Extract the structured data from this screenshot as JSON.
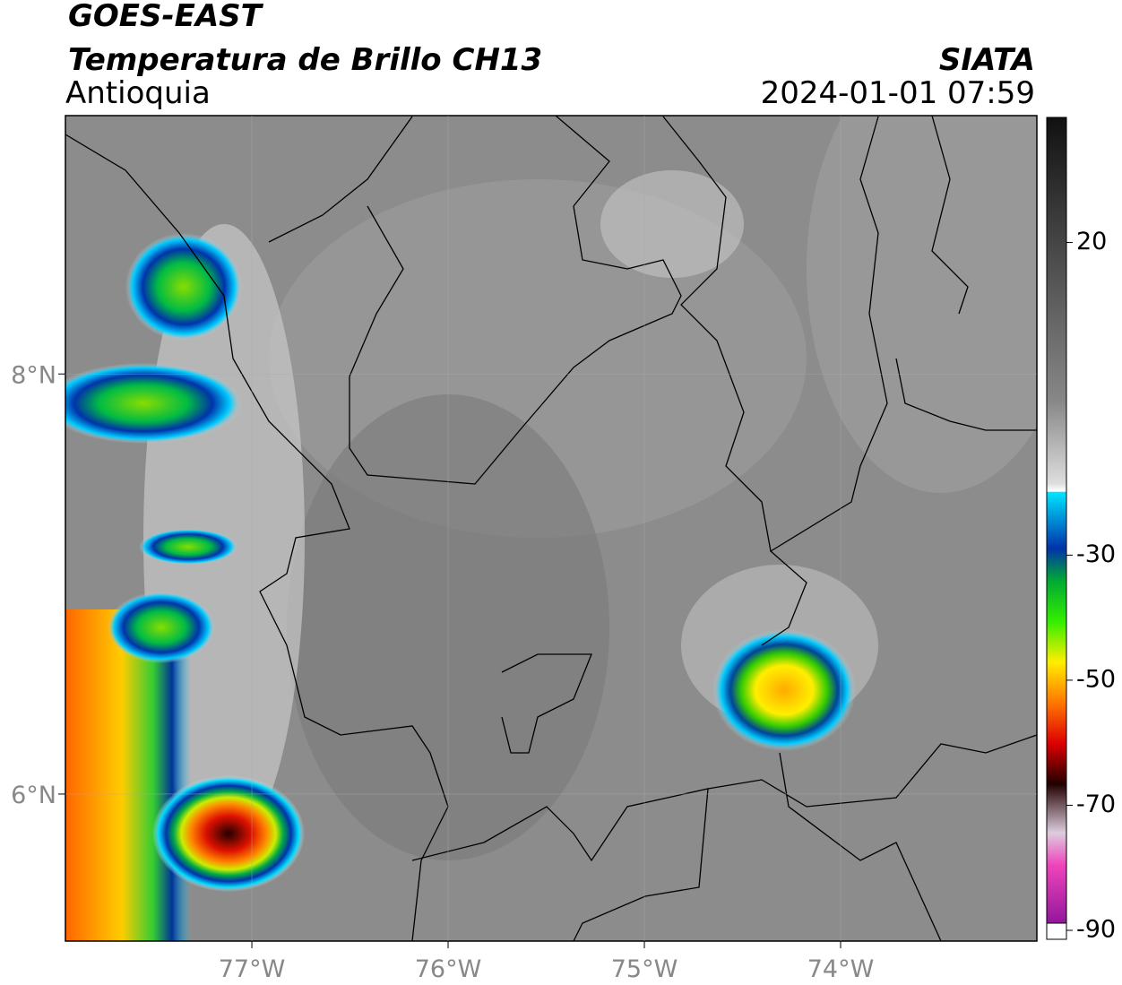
{
  "header": {
    "satellite": "GOES-EAST",
    "product": "Temperatura de Brillo CH13",
    "region": "Antioquia",
    "agency": "SIATA",
    "datetime": "2024-01-01 07:59"
  },
  "map": {
    "lonlim": [
      -77.95,
      -73.0
    ],
    "latlim": [
      5.3,
      9.23
    ],
    "lonticks": [
      {
        "value": -77,
        "label": "77°W"
      },
      {
        "value": -76,
        "label": "76°W"
      },
      {
        "value": -75,
        "label": "75°W"
      },
      {
        "value": -74,
        "label": "74°W"
      }
    ],
    "latticks": [
      {
        "value": 8,
        "label": "8°N"
      },
      {
        "value": 6,
        "label": "6°N"
      }
    ],
    "grid": true
  },
  "colorbar": {
    "lim": [
      -90,
      40
    ],
    "ticks": [
      20,
      -30,
      -50,
      -70,
      -90
    ]
  }
}
